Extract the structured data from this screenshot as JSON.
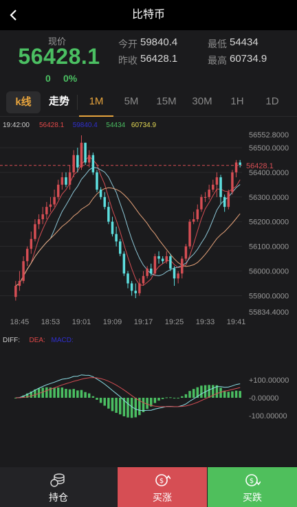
{
  "header": {
    "title": "比特币"
  },
  "quote": {
    "label": "现价",
    "price": "56428.1",
    "change": "0",
    "change_pct": "0%",
    "open_label": "今开",
    "open": "59840.4",
    "prev_close_label": "昨收",
    "prev_close": "56428.1",
    "low_label": "最低",
    "low": "54434",
    "high_label": "最高",
    "high": "60734.9"
  },
  "tabs": {
    "kline": "k线",
    "trend": "走势",
    "intervals": [
      "1M",
      "5M",
      "15M",
      "30M",
      "1H",
      "1D"
    ],
    "active_interval": "1M"
  },
  "ohlc_bar": {
    "time": "19:42:00",
    "values": [
      "56428.1",
      "59840.4",
      "54434",
      "60734.9"
    ],
    "colors": [
      "#e04848",
      "#2f2fd0",
      "#4bbf62",
      "#e8dd55"
    ]
  },
  "main_chart": {
    "y_ticks": [
      "56552.8000",
      "56500.0000",
      "56400.0000",
      "56300.0000",
      "56200.0000",
      "56100.0000",
      "56000.0000",
      "55900.0000",
      "55834.4000"
    ],
    "price_line": "56428.1",
    "x_ticks": [
      "18:45",
      "18:53",
      "19:01",
      "19:09",
      "19:17",
      "19:25",
      "19:33",
      "19:41"
    ]
  },
  "macd": {
    "labels": [
      "DIFF:",
      "DEA:",
      "MACD:"
    ],
    "label_colors": [
      "#cfcfcf",
      "#e04848",
      "#2f2fd0"
    ],
    "y_ticks": [
      "+100.00000",
      "-0.00000",
      "-100.00000"
    ]
  },
  "chart_data": {
    "type": "candlestick",
    "x": [
      "18:44",
      "18:45",
      "18:46",
      "18:47",
      "18:48",
      "18:49",
      "18:50",
      "18:51",
      "18:52",
      "18:53",
      "18:54",
      "18:55",
      "18:56",
      "18:57",
      "18:58",
      "18:59",
      "19:00",
      "19:01",
      "19:02",
      "19:03",
      "19:04",
      "19:05",
      "19:06",
      "19:07",
      "19:08",
      "19:09",
      "19:10",
      "19:11",
      "19:12",
      "19:13",
      "19:14",
      "19:15",
      "19:16",
      "19:17",
      "19:18",
      "19:19",
      "19:20",
      "19:21",
      "19:22",
      "19:23",
      "19:24",
      "19:25",
      "19:26",
      "19:27",
      "19:28",
      "19:29",
      "19:30",
      "19:31",
      "19:32",
      "19:33",
      "19:34",
      "19:35",
      "19:36",
      "19:37",
      "19:38",
      "19:39",
      "19:40",
      "19:41",
      "19:42"
    ],
    "series": [
      {
        "open": [
          55895,
          55940,
          55960,
          56040,
          56090,
          56130,
          56190,
          56210,
          56230,
          56260,
          56270,
          56300,
          56350,
          56380,
          56350,
          56400,
          56470,
          56420,
          56520,
          56440,
          56470,
          56400,
          56330,
          56300,
          56260,
          56200,
          56150,
          56120,
          56070,
          55990,
          55950,
          55920,
          55910,
          55950,
          55980,
          56010,
          55990,
          56060,
          56050,
          56040,
          56060,
          56010,
          55970,
          55990,
          56050,
          56100,
          56200,
          56210,
          56250,
          56300,
          56300,
          56330,
          56350,
          56380,
          56300,
          56260,
          56320,
          56400,
          56440
        ]
      },
      {
        "close": [
          55940,
          55960,
          56040,
          56090,
          56130,
          56190,
          56210,
          56230,
          56260,
          56270,
          56300,
          56350,
          56380,
          56350,
          56400,
          56470,
          56420,
          56520,
          56440,
          56470,
          56400,
          56330,
          56300,
          56260,
          56200,
          56150,
          56120,
          56070,
          55990,
          55950,
          55920,
          55910,
          55950,
          55980,
          56010,
          55990,
          56060,
          56050,
          56040,
          56060,
          56010,
          55970,
          55990,
          56050,
          56100,
          56200,
          56210,
          56250,
          56300,
          56300,
          56330,
          56350,
          56380,
          56300,
          56260,
          56320,
          56400,
          56440,
          56430
        ]
      },
      {
        "high": [
          55960,
          56000,
          56060,
          56100,
          56160,
          56210,
          56230,
          56260,
          56280,
          56300,
          56330,
          56370,
          56400,
          56400,
          56430,
          56490,
          56500,
          56550,
          56520,
          56490,
          56480,
          56410,
          56340,
          56320,
          56280,
          56220,
          56180,
          56130,
          56080,
          56000,
          55960,
          55950,
          55970,
          56000,
          56020,
          56030,
          56070,
          56080,
          56060,
          56080,
          56070,
          56020,
          56000,
          56060,
          56110,
          56210,
          56240,
          56270,
          56310,
          56320,
          56350,
          56370,
          56400,
          56390,
          56310,
          56330,
          56410,
          56450,
          56450
        ]
      },
      {
        "low": [
          55880,
          55920,
          55950,
          56020,
          56070,
          56120,
          56170,
          56190,
          56210,
          56240,
          56260,
          56290,
          56330,
          56340,
          56330,
          56380,
          56400,
          56410,
          56430,
          56420,
          56390,
          56320,
          56290,
          56250,
          56190,
          56140,
          56100,
          56060,
          55980,
          55930,
          55900,
          55890,
          55900,
          55940,
          55970,
          55980,
          55980,
          56030,
          56030,
          56030,
          56000,
          55940,
          55950,
          55970,
          56040,
          56090,
          56190,
          56200,
          56240,
          56280,
          56290,
          56320,
          56300,
          56270,
          56240,
          56250,
          56310,
          56380,
          56420
        ]
      }
    ],
    "ylim": [
      55834.4,
      56552.8
    ]
  }
}
